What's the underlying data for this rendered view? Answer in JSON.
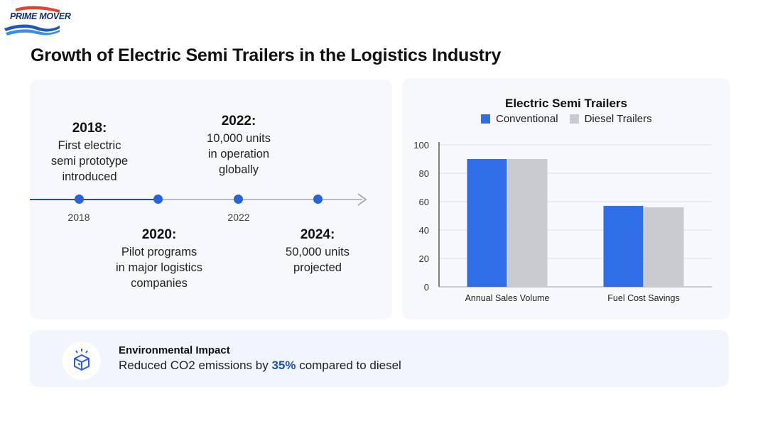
{
  "brand": {
    "logo_text": "PRIME MOVER"
  },
  "page_title": "Growth of Electric Semi Trailers in the Logistics Industry",
  "timeline": {
    "axis_years": [
      "2018",
      "2022"
    ],
    "milestones": [
      {
        "year": "2018:",
        "text": [
          "First electric",
          "semi prototype",
          "introduced"
        ]
      },
      {
        "year": "2020:",
        "text": [
          "Pilot programs",
          "in major logistics",
          "companies"
        ]
      },
      {
        "year": "2022:",
        "text": [
          "10,000 units",
          "in operation",
          "globally"
        ]
      },
      {
        "year": "2024:",
        "text": [
          "50,000 units",
          "projected"
        ]
      }
    ]
  },
  "chart_data": {
    "type": "bar",
    "title": "Electric Semi Trailers",
    "categories": [
      "Annual Sales Volume",
      "Fuel Cost Savings"
    ],
    "series": [
      {
        "name": "Conventional",
        "values": [
          90,
          57
        ],
        "color": "#2f6ee6"
      },
      {
        "name": "Diesel Trailers",
        "values": [
          90,
          56
        ],
        "color": "#c9cbcf"
      }
    ],
    "ylim": [
      0,
      100
    ],
    "yticks": [
      0,
      20,
      40,
      60,
      80,
      100
    ],
    "grid": true,
    "legend": "top"
  },
  "impact": {
    "heading": "Environmental Impact",
    "text_before": "Reduced CO2 emissions by ",
    "highlight": "35%",
    "text_after": " compared to diesel"
  },
  "colors": {
    "accent": "#2a63d9",
    "accent_dark": "#1f4fb5"
  }
}
